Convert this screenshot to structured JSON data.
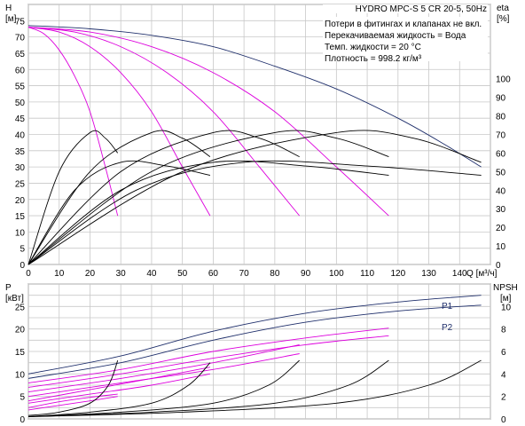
{
  "chart_data": [
    {
      "type": "line",
      "title": "HYDRO MPC-S 5 CR 20-5, 50Hz",
      "notes": [
        "Потери в фитингах и клапанах не вкл.",
        "Перекачиваемая жидкость = Вода",
        "Темп. жидкости = 20 °C",
        "Плотность = 998.2 кг/м³"
      ],
      "xlabel": "Q [м³/ч]",
      "ylabel_left": [
        "H",
        "[м]"
      ],
      "ylabel_right": [
        "eta",
        "[%]"
      ],
      "xlim": [
        0,
        150
      ],
      "ylim_left": [
        0,
        80
      ],
      "ylim_right": [
        0,
        140
      ],
      "x_ticks": [
        "0",
        "10",
        "20",
        "30",
        "40",
        "50",
        "60",
        "70",
        "80",
        "90",
        "100",
        "110",
        "120",
        "130",
        "140",
        "Q [м³/ч]"
      ],
      "y_ticks_left": [
        "0",
        "5",
        "10",
        "15",
        "20",
        "25",
        "30",
        "35",
        "40",
        "45",
        "50",
        "55",
        "60",
        "65",
        "70",
        "75"
      ],
      "y_ticks_right": [
        "0",
        "10",
        "20",
        "30",
        "40",
        "50",
        "60",
        "70",
        "80",
        "90",
        "100"
      ],
      "grid": true,
      "series": [
        {
          "group": "head_max",
          "color": "#1f2f6b",
          "x": [
            0,
            20,
            40,
            60,
            80,
            100,
            120,
            135,
            147
          ],
          "y": [
            73.5,
            72.5,
            70.5,
            67,
            61,
            54,
            45,
            37,
            30
          ]
        },
        {
          "group": "head",
          "color": "#dd00dd",
          "x": [
            0,
            5,
            10,
            15,
            20,
            25,
            29
          ],
          "y": [
            73,
            71,
            66,
            58,
            47,
            30,
            15
          ]
        },
        {
          "group": "head",
          "color": "#dd00dd",
          "x": [
            0,
            10,
            20,
            30,
            40,
            50,
            59
          ],
          "y": [
            73,
            71.5,
            67,
            59,
            47,
            30,
            15
          ]
        },
        {
          "group": "head",
          "color": "#dd00dd",
          "x": [
            0,
            15,
            30,
            45,
            60,
            75,
            88
          ],
          "y": [
            73,
            71.5,
            67,
            59,
            47,
            30,
            15
          ]
        },
        {
          "group": "head",
          "color": "#dd00dd",
          "x": [
            0,
            20,
            40,
            60,
            80,
            100,
            117
          ],
          "y": [
            73,
            71.5,
            67,
            59,
            47,
            30,
            15
          ]
        },
        {
          "group": "eta",
          "color": "#000000",
          "x": [
            0,
            10,
            20,
            25,
            29
          ],
          "y": [
            0,
            50,
            71,
            68,
            60
          ]
        },
        {
          "group": "eta",
          "color": "#000000",
          "x": [
            0,
            20,
            40,
            50,
            59
          ],
          "y": [
            0,
            50,
            71,
            68,
            58
          ]
        },
        {
          "group": "eta",
          "color": "#000000",
          "x": [
            0,
            30,
            60,
            75,
            88
          ],
          "y": [
            0,
            50,
            71,
            68,
            58
          ]
        },
        {
          "group": "eta",
          "color": "#000000",
          "x": [
            0,
            40,
            80,
            100,
            117
          ],
          "y": [
            0,
            50,
            71,
            68,
            58
          ]
        },
        {
          "group": "eta",
          "color": "#000000",
          "x": [
            0,
            50,
            100,
            125,
            147
          ],
          "y": [
            0,
            50,
            71,
            68,
            55
          ]
        },
        {
          "group": "eta",
          "color": "#000000",
          "x": [
            0,
            15,
            30,
            45,
            59
          ],
          "y": [
            0,
            40,
            55,
            53,
            48
          ]
        },
        {
          "group": "eta",
          "color": "#000000",
          "x": [
            0,
            30,
            60,
            90,
            117
          ],
          "y": [
            0,
            40,
            55,
            53,
            48
          ]
        },
        {
          "group": "eta",
          "color": "#000000",
          "x": [
            0,
            35,
            70,
            110,
            147
          ],
          "y": [
            0,
            40,
            55,
            53,
            48
          ]
        }
      ]
    },
    {
      "type": "line",
      "xlim": [
        0,
        150
      ],
      "ylabel_left": [
        "P",
        "[кВт]"
      ],
      "ylabel_right": [
        "NPSH",
        "[м]"
      ],
      "ylim_left": [
        0,
        30
      ],
      "ylim_right": [
        0,
        12
      ],
      "y_ticks_left": [
        "0",
        "5",
        "10",
        "15",
        "20",
        "25"
      ],
      "y_ticks_right": [
        "0",
        "2",
        "4",
        "6",
        "8",
        "10"
      ],
      "grid": true,
      "series": [
        {
          "name": "P1",
          "color": "#1f2f6b",
          "x": [
            0,
            30,
            60,
            90,
            120,
            147
          ],
          "y": [
            10,
            14,
            19.5,
            23.5,
            26,
            27.5
          ]
        },
        {
          "name": "P2",
          "color": "#1f2f6b",
          "x": [
            0,
            30,
            60,
            90,
            120,
            147
          ],
          "y": [
            9,
            12.5,
            17.5,
            21.5,
            24,
            25.3
          ]
        },
        {
          "group": "power",
          "color": "#dd00dd",
          "x": [
            0,
            30,
            60,
            90,
            117
          ],
          "y": [
            8,
            11,
            15,
            18,
            20.2
          ]
        },
        {
          "group": "power",
          "color": "#dd00dd",
          "x": [
            0,
            30,
            60,
            90,
            117
          ],
          "y": [
            7,
            10,
            13.5,
            16.5,
            18.5
          ]
        },
        {
          "group": "power",
          "color": "#dd00dd",
          "x": [
            0,
            30,
            60,
            88
          ],
          "y": [
            6,
            9,
            12.5,
            16.5
          ]
        },
        {
          "group": "power",
          "color": "#dd00dd",
          "x": [
            0,
            30,
            60,
            88
          ],
          "y": [
            5,
            8,
            11,
            14.5
          ]
        },
        {
          "group": "power",
          "color": "#dd00dd",
          "x": [
            0,
            20,
            40,
            59
          ],
          "y": [
            4,
            6.5,
            9,
            11.5
          ]
        },
        {
          "group": "power",
          "color": "#dd00dd",
          "x": [
            0,
            20,
            40,
            59
          ],
          "y": [
            3.5,
            5.5,
            7.5,
            10
          ]
        },
        {
          "group": "power",
          "color": "#dd00dd",
          "x": [
            0,
            10,
            20,
            29
          ],
          "y": [
            2.5,
            3.8,
            4.8,
            5.5
          ]
        },
        {
          "group": "power",
          "color": "#dd00dd",
          "x": [
            0,
            10,
            20,
            29
          ],
          "y": [
            2,
            3,
            4,
            5
          ]
        },
        {
          "group": "npsh",
          "color": "#000000",
          "x": [
            0,
            10,
            20,
            26,
            29
          ],
          "y": [
            0.3,
            0.6,
            1.4,
            3,
            5.2
          ]
        },
        {
          "group": "npsh",
          "color": "#000000",
          "x": [
            0,
            20,
            40,
            52,
            59
          ],
          "y": [
            0.2,
            0.6,
            1.4,
            3,
            5
          ]
        },
        {
          "group": "npsh",
          "color": "#000000",
          "x": [
            0,
            30,
            60,
            78,
            88
          ],
          "y": [
            0.2,
            0.6,
            1.4,
            3,
            5.2
          ]
        },
        {
          "group": "npsh",
          "color": "#000000",
          "x": [
            0,
            40,
            80,
            104,
            117
          ],
          "y": [
            0.2,
            0.6,
            1.4,
            3,
            5.2
          ]
        },
        {
          "group": "npsh",
          "color": "#000000",
          "x": [
            0,
            50,
            100,
            130,
            147
          ],
          "y": [
            0.2,
            0.6,
            1.4,
            3,
            5.2
          ]
        }
      ]
    }
  ]
}
